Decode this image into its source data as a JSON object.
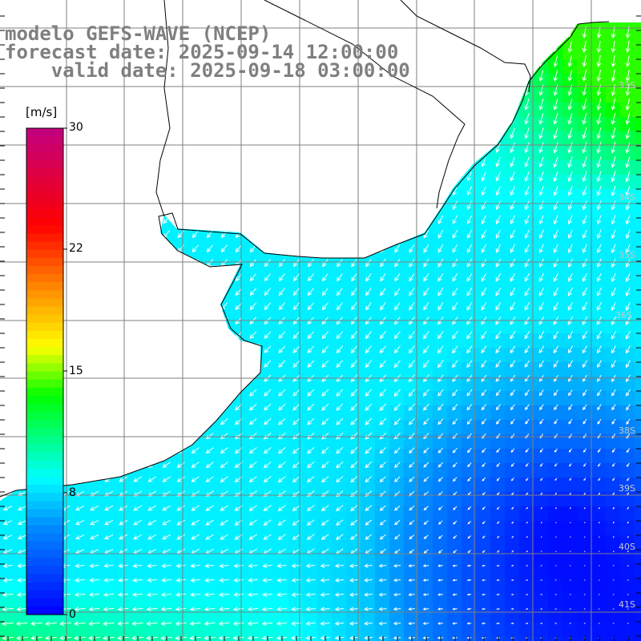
{
  "title": {
    "model": "modelo GEFS-WAVE (NCEP)",
    "forecast": "forecast date: 2025-09-14 12:00:00",
    "valid": "valid date: 2025-09-18 03:00:00"
  },
  "colorbar": {
    "unit": "[m/s]",
    "ticks": [
      "30",
      "22",
      "15",
      "8",
      "0"
    ],
    "colors": [
      "#0000ff",
      "#0088ff",
      "#00ffff",
      "#00ff00",
      "#ffff00",
      "#ff8000",
      "#ff0000",
      "#c00080"
    ]
  },
  "lat_labels": [
    "33S",
    "34S",
    "35S",
    "36S",
    "38S",
    "39S",
    "40S",
    "41S"
  ],
  "colors": {
    "land": "#ffffff",
    "grid": "#7f7f7f",
    "coast": "#000000",
    "arrow": "#ffffff"
  }
}
